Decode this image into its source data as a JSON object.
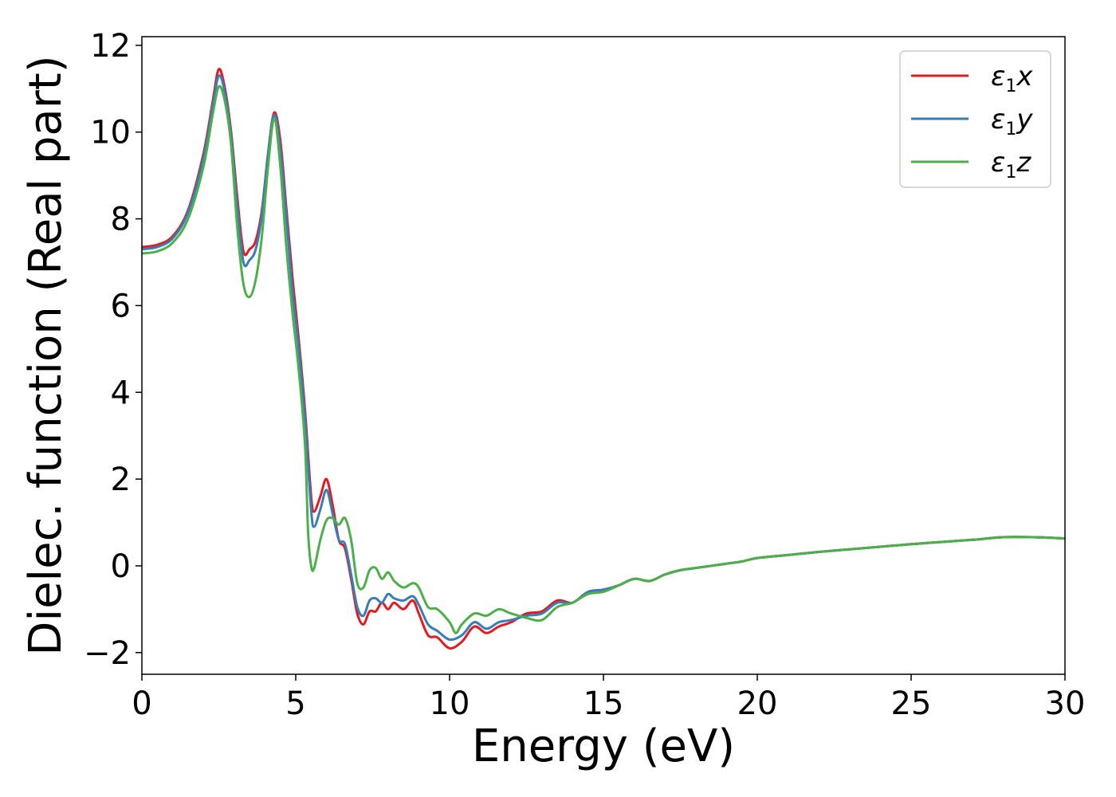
{
  "chart_data": {
    "type": "line",
    "xlabel": "Energy (eV)",
    "ylabel": "Dielec. function (Real part)",
    "xlim": [
      0,
      30
    ],
    "ylim": [
      -2.5,
      12.2
    ],
    "xticks": [
      0,
      5,
      10,
      15,
      20,
      25,
      30
    ],
    "yticks": [
      -2,
      0,
      2,
      4,
      6,
      8,
      10,
      12
    ],
    "xtick_labels": [
      "0",
      "5",
      "10",
      "15",
      "20",
      "25",
      "30"
    ],
    "ytick_labels": [
      "−2",
      "0",
      "2",
      "4",
      "6",
      "8",
      "10",
      "12"
    ],
    "grid": false,
    "legend_position": "top-right",
    "series": [
      {
        "name": "ε",
        "sub": "1",
        "suffix": "x",
        "color": "#e41a1c",
        "points": [
          [
            0,
            7.35
          ],
          [
            0.5,
            7.4
          ],
          [
            1.0,
            7.6
          ],
          [
            1.5,
            8.2
          ],
          [
            2.0,
            9.5
          ],
          [
            2.3,
            10.7
          ],
          [
            2.5,
            11.45
          ],
          [
            2.7,
            11.0
          ],
          [
            2.9,
            10.0
          ],
          [
            3.1,
            8.5
          ],
          [
            3.3,
            7.25
          ],
          [
            3.5,
            7.3
          ],
          [
            3.7,
            7.5
          ],
          [
            3.9,
            8.2
          ],
          [
            4.1,
            9.5
          ],
          [
            4.3,
            10.45
          ],
          [
            4.5,
            9.8
          ],
          [
            4.7,
            8.2
          ],
          [
            4.9,
            6.6
          ],
          [
            5.1,
            5.2
          ],
          [
            5.3,
            3.6
          ],
          [
            5.5,
            1.6
          ],
          [
            5.6,
            1.25
          ],
          [
            5.8,
            1.6
          ],
          [
            6.0,
            2.0
          ],
          [
            6.2,
            1.4
          ],
          [
            6.4,
            0.6
          ],
          [
            6.6,
            0.4
          ],
          [
            6.8,
            -0.3
          ],
          [
            7.0,
            -1.1
          ],
          [
            7.2,
            -1.35
          ],
          [
            7.4,
            -1.05
          ],
          [
            7.6,
            -1.05
          ],
          [
            7.8,
            -0.85
          ],
          [
            8.0,
            -1.0
          ],
          [
            8.2,
            -0.85
          ],
          [
            8.5,
            -1.0
          ],
          [
            8.8,
            -0.8
          ],
          [
            9.0,
            -1.1
          ],
          [
            9.3,
            -1.6
          ],
          [
            9.6,
            -1.65
          ],
          [
            10.0,
            -1.9
          ],
          [
            10.4,
            -1.75
          ],
          [
            10.8,
            -1.4
          ],
          [
            11.2,
            -1.55
          ],
          [
            11.6,
            -1.4
          ],
          [
            12.0,
            -1.3
          ],
          [
            12.5,
            -1.1
          ],
          [
            13.0,
            -1.05
          ],
          [
            13.5,
            -0.8
          ],
          [
            14.0,
            -0.85
          ],
          [
            14.5,
            -0.6
          ],
          [
            15.0,
            -0.55
          ],
          [
            15.5,
            -0.45
          ],
          [
            16.0,
            -0.3
          ],
          [
            16.5,
            -0.35
          ],
          [
            17.0,
            -0.2
          ],
          [
            17.5,
            -0.1
          ],
          [
            18.0,
            -0.05
          ],
          [
            18.5,
            0.0
          ],
          [
            19.0,
            0.05
          ],
          [
            19.5,
            0.1
          ],
          [
            20.0,
            0.18
          ],
          [
            21.0,
            0.25
          ],
          [
            22.0,
            0.32
          ],
          [
            23.0,
            0.38
          ],
          [
            24.0,
            0.44
          ],
          [
            25.0,
            0.5
          ],
          [
            26.0,
            0.55
          ],
          [
            27.0,
            0.6
          ],
          [
            28.0,
            0.66
          ],
          [
            29.0,
            0.66
          ],
          [
            30.0,
            0.63
          ]
        ]
      },
      {
        "name": "ε",
        "sub": "1",
        "suffix": "y",
        "color": "#377eb8",
        "points": [
          [
            0,
            7.3
          ],
          [
            0.5,
            7.35
          ],
          [
            1.0,
            7.55
          ],
          [
            1.5,
            8.15
          ],
          [
            2.0,
            9.4
          ],
          [
            2.3,
            10.6
          ],
          [
            2.5,
            11.3
          ],
          [
            2.7,
            10.9
          ],
          [
            2.9,
            9.9
          ],
          [
            3.1,
            8.3
          ],
          [
            3.3,
            7.0
          ],
          [
            3.5,
            7.05
          ],
          [
            3.7,
            7.3
          ],
          [
            3.9,
            8.1
          ],
          [
            4.1,
            9.5
          ],
          [
            4.3,
            10.4
          ],
          [
            4.5,
            9.6
          ],
          [
            4.7,
            8.0
          ],
          [
            4.9,
            6.3
          ],
          [
            5.1,
            5.0
          ],
          [
            5.3,
            3.4
          ],
          [
            5.5,
            1.3
          ],
          [
            5.6,
            0.9
          ],
          [
            5.8,
            1.3
          ],
          [
            6.0,
            1.75
          ],
          [
            6.2,
            1.2
          ],
          [
            6.4,
            0.6
          ],
          [
            6.6,
            0.5
          ],
          [
            6.8,
            -0.2
          ],
          [
            7.0,
            -0.95
          ],
          [
            7.2,
            -1.15
          ],
          [
            7.4,
            -0.8
          ],
          [
            7.6,
            -0.75
          ],
          [
            7.8,
            -0.85
          ],
          [
            8.0,
            -0.65
          ],
          [
            8.2,
            -0.75
          ],
          [
            8.5,
            -0.8
          ],
          [
            8.8,
            -0.7
          ],
          [
            9.0,
            -0.9
          ],
          [
            9.3,
            -1.35
          ],
          [
            9.6,
            -1.5
          ],
          [
            10.0,
            -1.7
          ],
          [
            10.4,
            -1.6
          ],
          [
            10.8,
            -1.3
          ],
          [
            11.2,
            -1.45
          ],
          [
            11.6,
            -1.3
          ],
          [
            12.0,
            -1.25
          ],
          [
            12.5,
            -1.15
          ],
          [
            13.0,
            -1.1
          ],
          [
            13.5,
            -0.85
          ],
          [
            14.0,
            -0.85
          ],
          [
            14.5,
            -0.6
          ],
          [
            15.0,
            -0.55
          ],
          [
            15.5,
            -0.45
          ],
          [
            16.0,
            -0.3
          ],
          [
            16.5,
            -0.35
          ],
          [
            17.0,
            -0.2
          ],
          [
            17.5,
            -0.1
          ],
          [
            18.0,
            -0.05
          ],
          [
            18.5,
            0.0
          ],
          [
            19.0,
            0.05
          ],
          [
            19.5,
            0.1
          ],
          [
            20.0,
            0.18
          ],
          [
            21.0,
            0.25
          ],
          [
            22.0,
            0.32
          ],
          [
            23.0,
            0.38
          ],
          [
            24.0,
            0.44
          ],
          [
            25.0,
            0.5
          ],
          [
            26.0,
            0.55
          ],
          [
            27.0,
            0.6
          ],
          [
            28.0,
            0.66
          ],
          [
            29.0,
            0.66
          ],
          [
            30.0,
            0.63
          ]
        ]
      },
      {
        "name": "ε",
        "sub": "1",
        "suffix": "z",
        "color": "#4daf4a",
        "points": [
          [
            0,
            7.2
          ],
          [
            0.5,
            7.25
          ],
          [
            1.0,
            7.45
          ],
          [
            1.5,
            8.0
          ],
          [
            2.0,
            9.2
          ],
          [
            2.3,
            10.4
          ],
          [
            2.5,
            11.05
          ],
          [
            2.7,
            10.7
          ],
          [
            2.9,
            9.7
          ],
          [
            3.1,
            7.8
          ],
          [
            3.3,
            6.5
          ],
          [
            3.5,
            6.2
          ],
          [
            3.7,
            6.6
          ],
          [
            3.9,
            7.6
          ],
          [
            4.1,
            9.2
          ],
          [
            4.3,
            10.3
          ],
          [
            4.5,
            9.2
          ],
          [
            4.7,
            7.3
          ],
          [
            4.9,
            5.8
          ],
          [
            5.1,
            4.5
          ],
          [
            5.3,
            2.8
          ],
          [
            5.4,
            0.8
          ],
          [
            5.5,
            0.0
          ],
          [
            5.6,
            -0.05
          ],
          [
            5.8,
            0.6
          ],
          [
            6.0,
            1.05
          ],
          [
            6.2,
            1.1
          ],
          [
            6.4,
            0.95
          ],
          [
            6.6,
            1.1
          ],
          [
            6.8,
            0.6
          ],
          [
            7.0,
            -0.4
          ],
          [
            7.2,
            -0.5
          ],
          [
            7.4,
            -0.1
          ],
          [
            7.6,
            -0.05
          ],
          [
            7.8,
            -0.3
          ],
          [
            8.0,
            -0.15
          ],
          [
            8.2,
            -0.35
          ],
          [
            8.5,
            -0.5
          ],
          [
            8.8,
            -0.4
          ],
          [
            9.0,
            -0.5
          ],
          [
            9.3,
            -0.95
          ],
          [
            9.6,
            -1.0
          ],
          [
            10.0,
            -1.3
          ],
          [
            10.2,
            -1.55
          ],
          [
            10.4,
            -1.35
          ],
          [
            10.8,
            -1.1
          ],
          [
            11.2,
            -1.15
          ],
          [
            11.6,
            -1.0
          ],
          [
            12.0,
            -1.1
          ],
          [
            12.5,
            -1.2
          ],
          [
            13.0,
            -1.25
          ],
          [
            13.5,
            -0.95
          ],
          [
            14.0,
            -0.85
          ],
          [
            14.5,
            -0.65
          ],
          [
            15.0,
            -0.6
          ],
          [
            15.5,
            -0.45
          ],
          [
            16.0,
            -0.3
          ],
          [
            16.5,
            -0.35
          ],
          [
            17.0,
            -0.2
          ],
          [
            17.5,
            -0.1
          ],
          [
            18.0,
            -0.05
          ],
          [
            18.5,
            0.0
          ],
          [
            19.0,
            0.05
          ],
          [
            19.5,
            0.1
          ],
          [
            20.0,
            0.18
          ],
          [
            21.0,
            0.25
          ],
          [
            22.0,
            0.32
          ],
          [
            23.0,
            0.38
          ],
          [
            24.0,
            0.44
          ],
          [
            25.0,
            0.5
          ],
          [
            26.0,
            0.55
          ],
          [
            27.0,
            0.6
          ],
          [
            28.0,
            0.66
          ],
          [
            29.0,
            0.66
          ],
          [
            30.0,
            0.63
          ]
        ]
      }
    ]
  }
}
